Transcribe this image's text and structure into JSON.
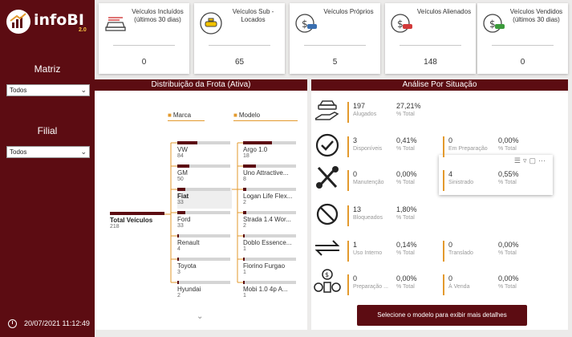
{
  "colors": {
    "brand": "#5c0c12",
    "accent": "#e39a2d",
    "background": "#ecebea"
  },
  "sidebar": {
    "logo_text": "infoBI",
    "logo_version": "2.0",
    "filters": [
      {
        "label": "Matriz",
        "selected": "Todos"
      },
      {
        "label": "Filial",
        "selected": "Todos"
      }
    ],
    "datetime": "20/07/2021 11:12:49"
  },
  "kpis": [
    {
      "label": "Veículos Incluídos (últimos 30 dias)",
      "value": "0",
      "icon": "car-list-icon"
    },
    {
      "label": "Veículos Sub - Locados",
      "value": "65",
      "icon": "taxi-icon"
    },
    {
      "label": "Veículos Próprios",
      "value": "5",
      "icon": "car-money-icon"
    },
    {
      "label": "Veículos Alienados",
      "value": "148",
      "icon": "car-money-red-icon"
    },
    {
      "label": "Veículos Vendidos (últimos 30 dias)",
      "value": "0",
      "icon": "car-dollar-icon"
    }
  ],
  "distribution": {
    "title": "Distribuição da Frota (Ativa)",
    "root": {
      "label": "Total Veículos",
      "value": "218"
    },
    "col_marca": "Marca",
    "col_modelo": "Modelo",
    "marcas": [
      {
        "label": "VW",
        "value": "84",
        "share": 0.385
      },
      {
        "label": "GM",
        "value": "50",
        "share": 0.229
      },
      {
        "label": "Fiat",
        "value": "33",
        "share": 0.151,
        "selected": true
      },
      {
        "label": "Ford",
        "value": "33",
        "share": 0.151
      },
      {
        "label": "Renault",
        "value": "4",
        "share": 0.018
      },
      {
        "label": "Toyota",
        "value": "3",
        "share": 0.014
      },
      {
        "label": "Hyundai",
        "value": "2",
        "share": 0.009
      }
    ],
    "modelos": [
      {
        "label": "Argo 1.0",
        "value": "18",
        "share": 0.545
      },
      {
        "label": "Uno Attractive...",
        "value": "8",
        "share": 0.242
      },
      {
        "label": "Logan Life Flex...",
        "value": "2",
        "share": 0.061
      },
      {
        "label": "Strada 1.4 Wor...",
        "value": "2",
        "share": 0.061
      },
      {
        "label": "Doblo Essence...",
        "value": "1",
        "share": 0.03
      },
      {
        "label": "Fiorino Furgao",
        "value": "1",
        "share": 0.03
      },
      {
        "label": "Mobi 1.0 4p A...",
        "value": "1",
        "share": 0.03
      }
    ]
  },
  "situacao": {
    "title": "Análise Por Situação",
    "pct_label": "% Total",
    "rows": [
      {
        "icon": "car-hand-icon",
        "items": [
          {
            "value": "197",
            "label": "Alugados",
            "pct": "27,21%"
          }
        ]
      },
      {
        "icon": "check-circle-icon",
        "items": [
          {
            "value": "3",
            "label": "Disponíveis",
            "pct": "0,41%"
          },
          {
            "value": "0",
            "label": "Em Preparação",
            "pct": "0,00%"
          }
        ]
      },
      {
        "icon": "tools-icon",
        "items": [
          {
            "value": "0",
            "label": "Manutenção",
            "pct": "0,00%"
          },
          {
            "value": "4",
            "label": "Sinistrado",
            "pct": "0,55%"
          }
        ]
      },
      {
        "icon": "blocked-icon",
        "items": [
          {
            "value": "13",
            "label": "Bloqueados",
            "pct": "1,80%"
          }
        ]
      },
      {
        "icon": "arrows-icon",
        "items": [
          {
            "value": "1",
            "label": "Uso Interno",
            "pct": "0,14%"
          },
          {
            "value": "0",
            "label": "Translado",
            "pct": "0,00%"
          }
        ]
      },
      {
        "icon": "money-people-icon",
        "items": [
          {
            "value": "0",
            "label": "Preparação ...",
            "pct": "0,00%"
          },
          {
            "value": "0",
            "label": "À Venda",
            "pct": "0,00%"
          }
        ]
      }
    ],
    "detail_button": "Selecione o modelo para exibir mais detalhes"
  }
}
